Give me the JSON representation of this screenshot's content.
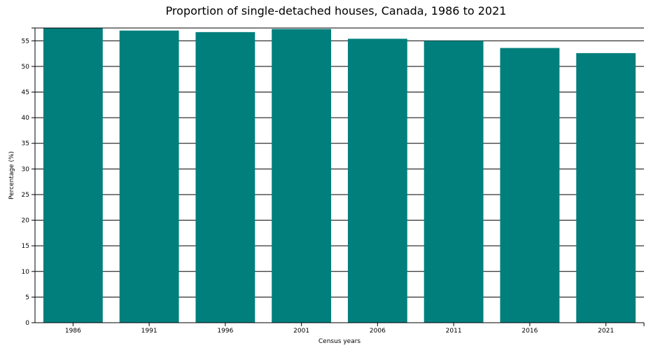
{
  "chart_data": {
    "type": "bar",
    "title": "Proportion of single-detached houses, Canada, 1986 to 2021",
    "xlabel": "Census years",
    "ylabel": "Percentage (%)",
    "categories": [
      "1986",
      "1991",
      "1996",
      "2001",
      "2006",
      "2011",
      "2016",
      "2021"
    ],
    "values": [
      57.5,
      57.0,
      56.7,
      57.3,
      55.4,
      55.0,
      53.6,
      52.6
    ],
    "ylim": [
      0,
      57.5
    ],
    "yticks": [
      0,
      5,
      10,
      15,
      20,
      25,
      30,
      35,
      40,
      45,
      50,
      55
    ],
    "grid": true,
    "legend": "none",
    "colors": {
      "bar": "#007f7d",
      "grid": "#000000",
      "axis": "#000000"
    }
  }
}
